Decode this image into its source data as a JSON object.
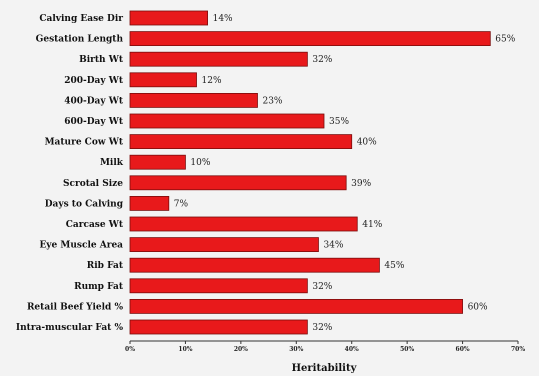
{
  "chart_data": {
    "type": "bar",
    "orientation": "horizontal",
    "categories": [
      "Calving Ease Dir",
      "Gestation Length",
      "Birth Wt",
      "200-Day Wt",
      "400-Day Wt",
      "600-Day Wt",
      "Mature Cow Wt",
      "Milk",
      "Scrotal Size",
      "Days to Calving",
      "Carcase Wt",
      "Eye Muscle Area",
      "Rib Fat",
      "Rump Fat",
      "Retail Beef Yield %",
      "Intra-muscular Fat %"
    ],
    "values": [
      14,
      65,
      32,
      12,
      23,
      35,
      40,
      10,
      39,
      7,
      41,
      34,
      45,
      32,
      60,
      32
    ],
    "value_labels": [
      "14%",
      "65%",
      "32%",
      "12%",
      "23%",
      "35%",
      "40%",
      "10%",
      "39%",
      "7%",
      "41%",
      "34%",
      "45%",
      "32%",
      "60%",
      "32%"
    ],
    "xlabel": "Heritability",
    "xlim": [
      0,
      70
    ],
    "xticks": [
      "0%",
      "10%",
      "20%",
      "30%",
      "40%",
      "50%",
      "60%",
      "70%"
    ],
    "bar_color": "#e8191b",
    "bar_border_color": "#7a0c0c",
    "grid": false,
    "legend": "none"
  }
}
